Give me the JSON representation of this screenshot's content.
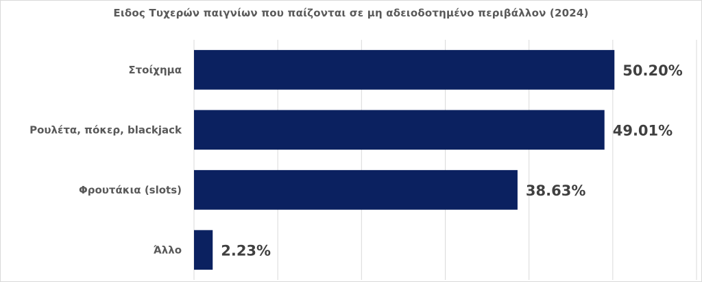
{
  "chart_data": {
    "type": "bar",
    "orientation": "horizontal",
    "title": "Ειδος Τυχερών παιγνίων που παίζονται σε μη αδειοδοτημένο περιβάλλον (2024)",
    "categories": [
      "Στοίχημα",
      "Ρουλέτα, πόκερ, blackjack",
      "Φρουτάκια (slots)",
      "Άλλο"
    ],
    "values": [
      50.2,
      49.01,
      38.63,
      2.23
    ],
    "value_labels": [
      "50.20%",
      "49.01%",
      "38.63%",
      "2.23%"
    ],
    "xlim": [
      0,
      60
    ],
    "grid": true,
    "xlabel": "",
    "ylabel": "",
    "colors": {
      "bar": "#0b2160",
      "grid": "#d9d9d9",
      "category_text": "#595959",
      "value_text": "#404040"
    }
  }
}
